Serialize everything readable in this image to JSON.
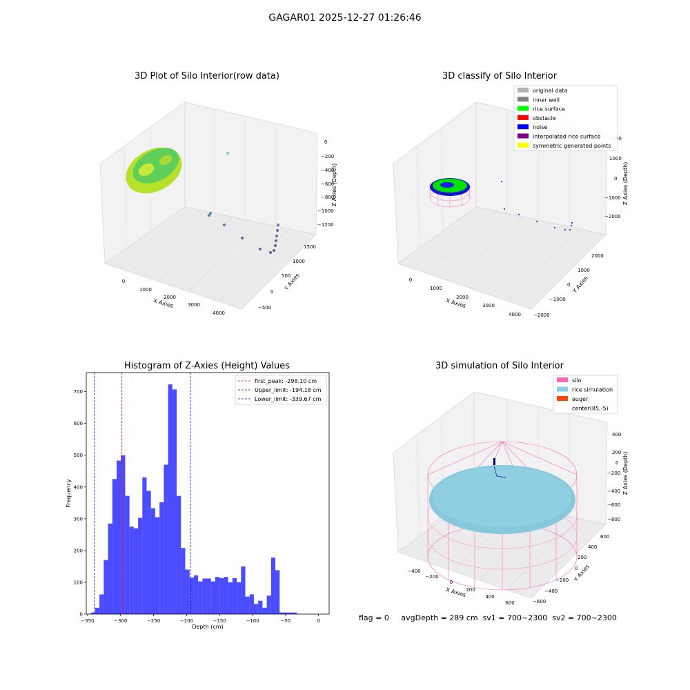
{
  "figure": {
    "suptitle": "GAGAR01 2025-12-27 01:26:46",
    "footer": {
      "flag": "flag = 0",
      "avg_depth": "avgDepth = 289 cm",
      "sv1": "sv1 = 700~2300",
      "sv2": "sv2 = 700~2300"
    }
  },
  "chart_data": [
    {
      "type": "scatter",
      "title": "3D Plot of Silo Interior(row data)",
      "xlabel": "X Axies",
      "ylabel": "Y Axies",
      "zlabel": "Z Axies (Depth)",
      "xticks": [
        "0",
        "1000",
        "2000",
        "3000",
        "4000"
      ],
      "yticks": [
        "−500",
        "0",
        "500",
        "1000",
        "1500"
      ],
      "zticks": [
        "0",
        "−200",
        "−400",
        "−600",
        "−800",
        "−1000",
        "−1200"
      ],
      "colormap": [
        "#440154",
        "#31688e",
        "#35b779",
        "#fde725"
      ]
    },
    {
      "type": "scatter",
      "title": "3D classify of Silo Interior",
      "xlabel": "X Axies",
      "ylabel": "Y Axies",
      "zlabel": "Z Axies (Depth)",
      "xticks": [
        "0",
        "1000",
        "2000",
        "3000",
        "4000"
      ],
      "yticks": [
        "−2000",
        "−1000",
        "0",
        "1000",
        "2000"
      ],
      "zticks": [
        "2000",
        "1000",
        "0",
        "−1000",
        "−2000"
      ],
      "legend": [
        {
          "label": "original data",
          "color": "#b3b3b3"
        },
        {
          "label": "inner wall",
          "color": "#808080"
        },
        {
          "label": "rice surface",
          "color": "#00ff00"
        },
        {
          "label": "obstacle",
          "color": "#ff0000"
        },
        {
          "label": "noise",
          "color": "#0000ff"
        },
        {
          "label": "interpolated rice surface",
          "color": "#800080"
        },
        {
          "label": "symmetric generated points",
          "color": "#ffff00"
        }
      ]
    },
    {
      "type": "bar",
      "title": "Histogram of Z-Axies (Height) Values",
      "xlabel": "Depth (cm)",
      "ylabel": "Frequency",
      "xlim": [
        -352,
        16
      ],
      "ylim": [
        0,
        760
      ],
      "xticks": [
        -350,
        -300,
        -250,
        -200,
        -150,
        -100,
        -50,
        0
      ],
      "yticks": [
        0,
        100,
        200,
        300,
        400,
        500,
        600,
        700
      ],
      "tick_labels_x": [
        "−350",
        "−300",
        "−250",
        "−200",
        "−150",
        "−100",
        "−50",
        "0"
      ],
      "tick_labels_y": [
        "0",
        "100",
        "200",
        "300",
        "400",
        "500",
        "600",
        "700"
      ],
      "bins": {
        "edges_start": -345,
        "width": 6.5,
        "values": [
          5,
          20,
          62,
          170,
          285,
          425,
          483,
          500,
          372,
          275,
          270,
          303,
          430,
          388,
          333,
          305,
          352,
          470,
          723,
          707,
          372,
          208,
          140,
          115,
          122,
          103,
          112,
          112,
          103,
          117,
          113,
          117,
          100,
          113,
          100,
          150,
          55,
          62,
          32,
          42,
          20,
          58,
          178,
          138,
          5,
          5,
          5,
          5
        ]
      },
      "color": "#0000ff",
      "vlines": [
        {
          "label": "first_peak: -298.10 cm",
          "x": -298.1,
          "color": "#ff0000"
        },
        {
          "label": "Upper_limit: -194.18 cm",
          "x": -194.18,
          "color": "#0000ff"
        },
        {
          "label": "Lower_limit: -339.67 cm",
          "x": -339.67,
          "color": "#0000ff"
        }
      ]
    },
    {
      "type": "scatter",
      "title": "3D simulation of Silo Interior",
      "xlabel": "X Axies",
      "ylabel": "Y Axies",
      "zlabel": "Z Axies (Depth)",
      "xticks": [
        "−400",
        "−200",
        "0",
        "200",
        "400",
        "600"
      ],
      "yticks": [
        "−600",
        "−400",
        "−200",
        "0",
        "200",
        "400",
        "600"
      ],
      "zticks": [
        "400",
        "200",
        "0",
        "−200",
        "−400",
        "−600",
        "−800"
      ],
      "legend": [
        {
          "label": "silo",
          "color": "#ff69b4"
        },
        {
          "label": "rice simulation",
          "color": "#87ceeb"
        },
        {
          "label": "auger",
          "color": "#ff4500"
        },
        {
          "label": "center(85,-5)",
          "color": ""
        }
      ]
    }
  ]
}
